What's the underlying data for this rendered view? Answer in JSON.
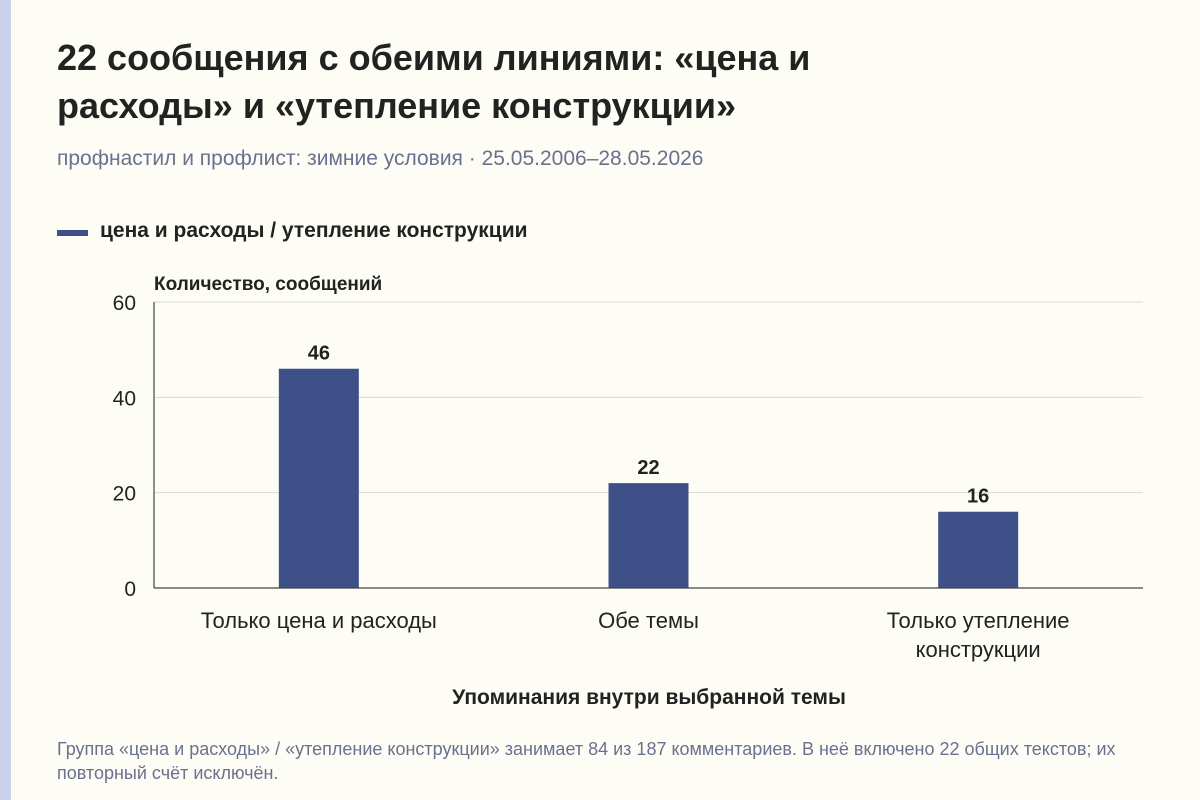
{
  "chart_data": {
    "type": "bar",
    "title": "22 сообщения с обеими линиями: «цена и расходы» и «утепление конструкции»",
    "title_lines": [
      "22 сообщения с обеими линиями: «цена и",
      "расходы» и «утепление конструкции»"
    ],
    "subtitle": "профнастил и профлист: зимние условия · 25.05.2006–28.05.2026",
    "legend": {
      "label": "цена и расходы / утепление конструкции",
      "placement": "top-left"
    },
    "ylabel": "Количество, сообщений",
    "xlabel": "Упоминания внутри выбранной темы",
    "ylim": [
      0,
      60
    ],
    "yticks": [
      0,
      20,
      40,
      60
    ],
    "grid": true,
    "categories": [
      [
        "Только цена и расходы"
      ],
      [
        "Обе темы"
      ],
      [
        "Только утепление",
        "конструкции"
      ]
    ],
    "series": [
      {
        "name": "цена и расходы / утепление конструкции",
        "values": [
          46,
          22,
          16
        ],
        "color": "#3d5188"
      }
    ],
    "note": "Группа «цена и расходы» / «утепление конструкции» занимает 84 из 187 комментариев. В неё включено 22 общих текстов; их повторный счёт исключён."
  },
  "colors": {
    "background": "#fefdf5",
    "bar": "#3d5188",
    "grid": "#d9d9d2",
    "axis": "#444444",
    "muted_text": "#6a7090",
    "left_stripe": "#c9d1ec"
  }
}
